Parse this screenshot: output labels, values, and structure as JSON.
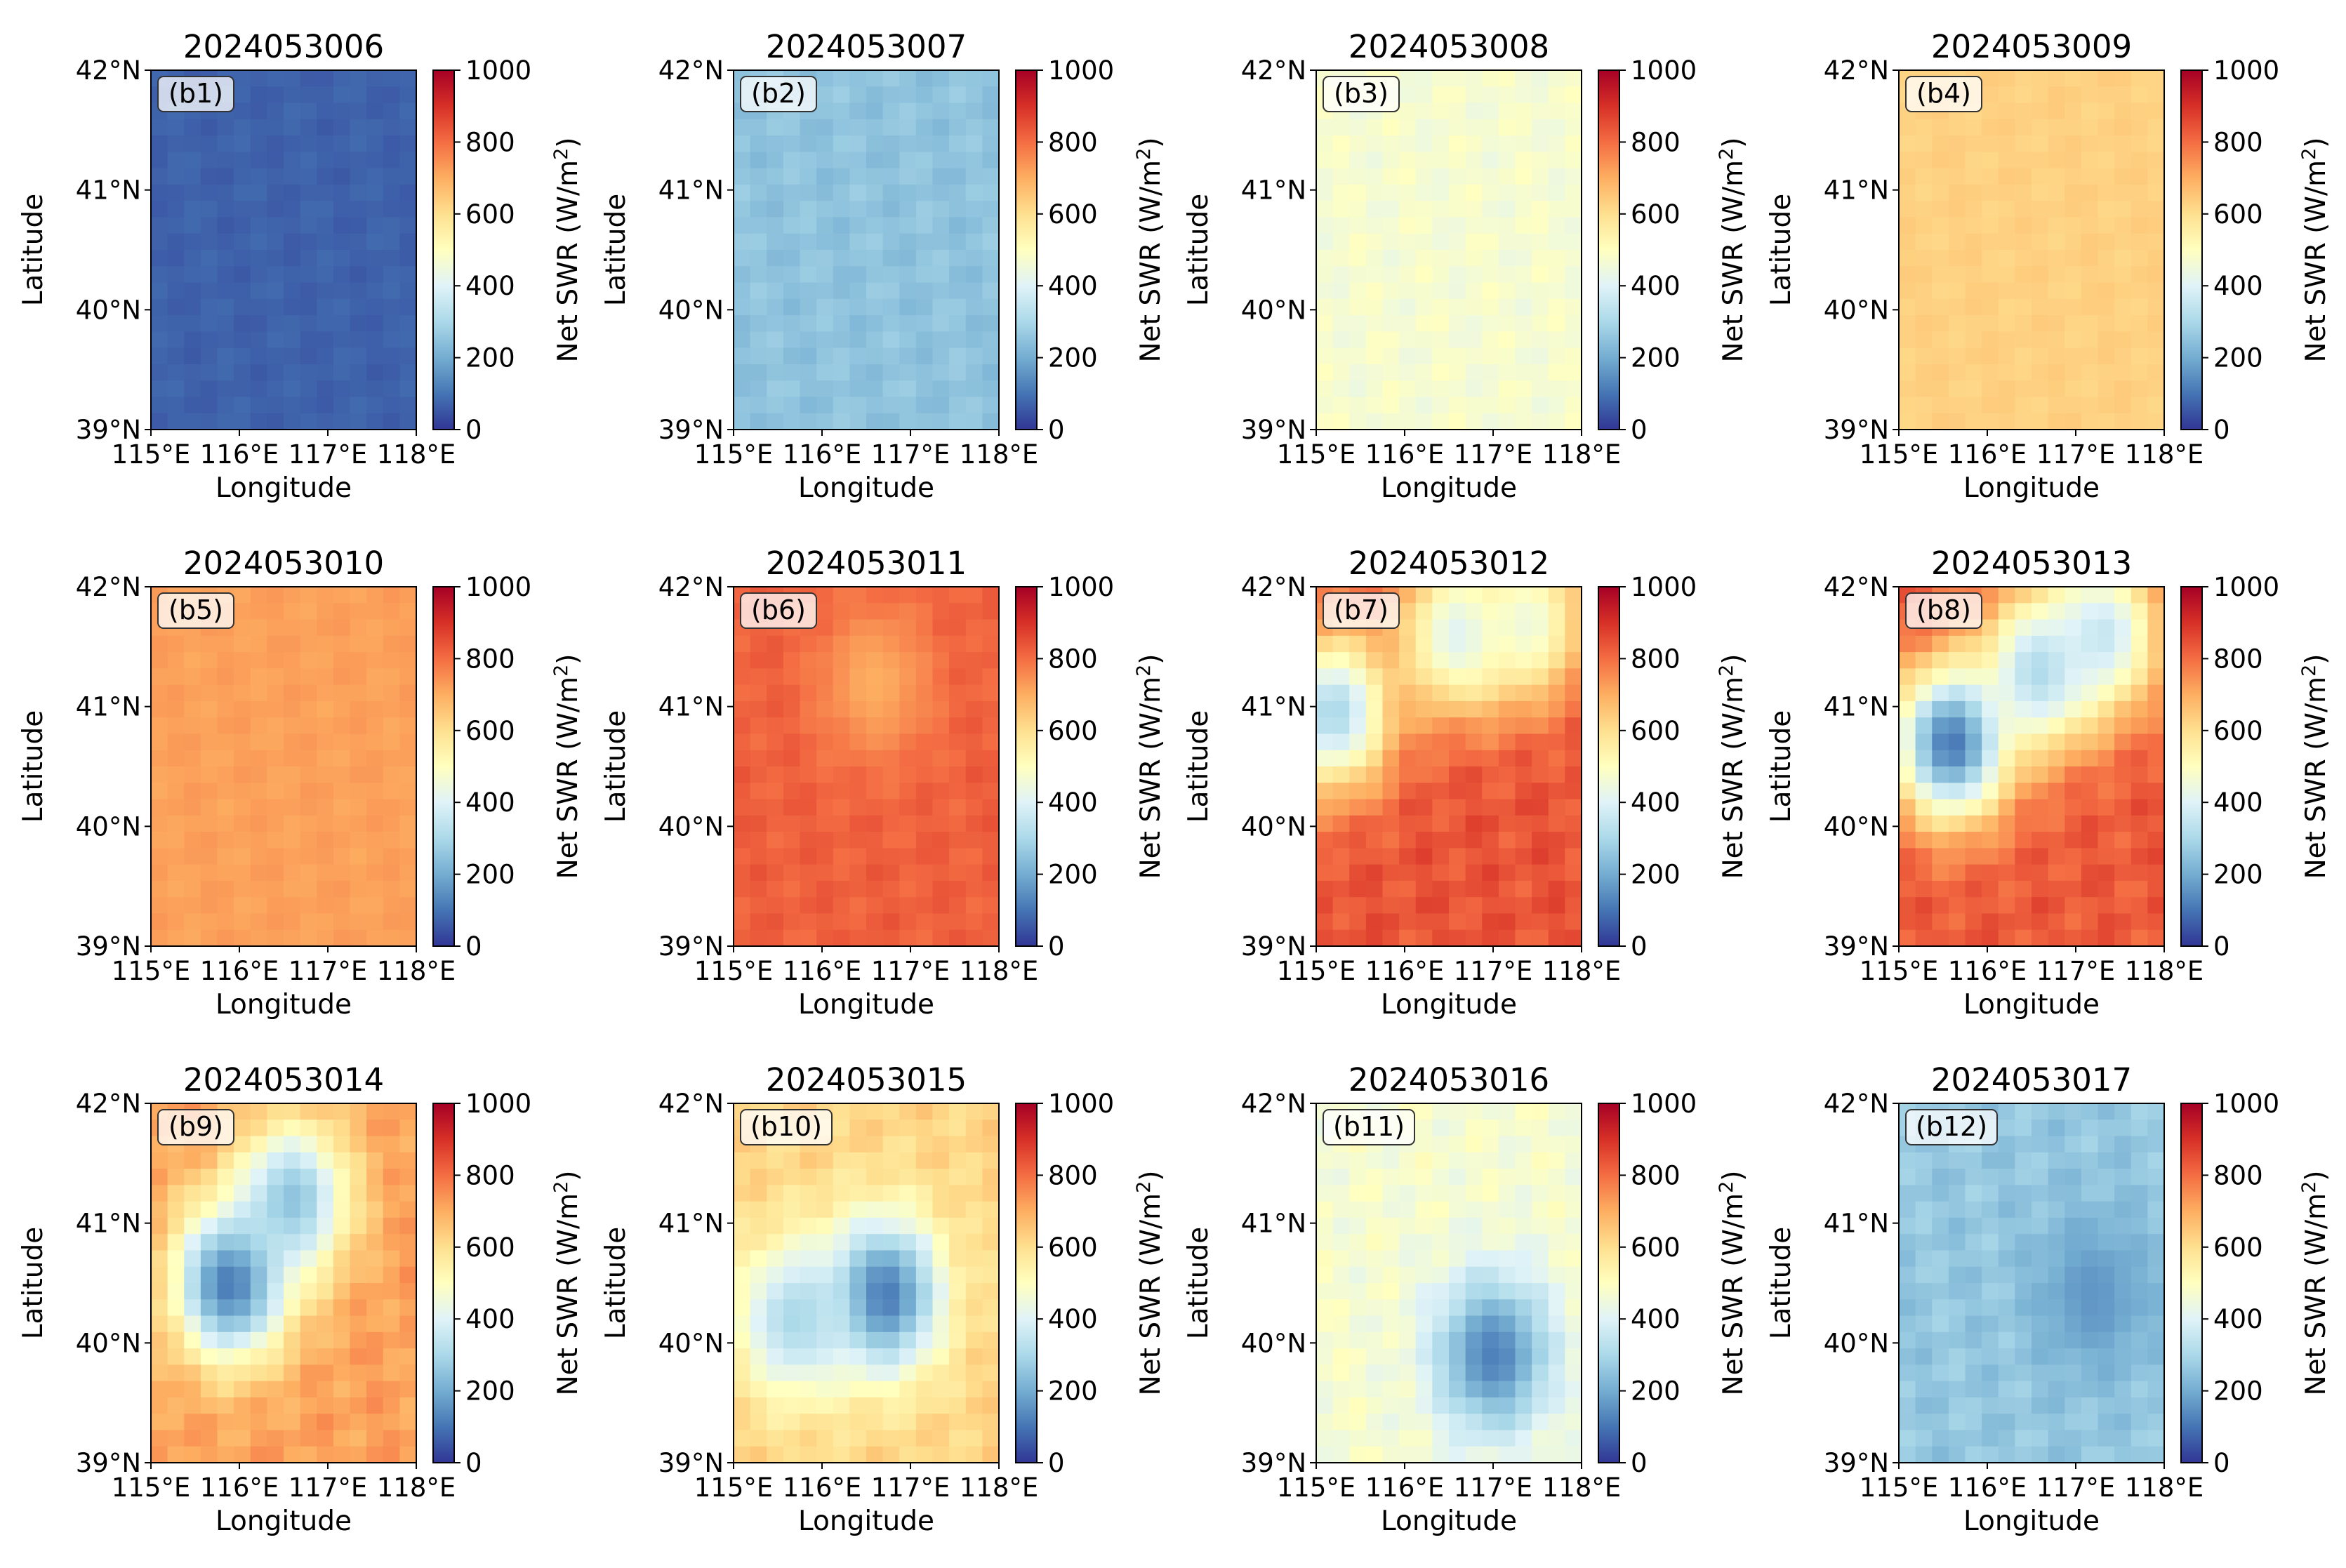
{
  "figure": {
    "xlabel": "Longitude",
    "ylabel": "Latitude",
    "colorbar": {
      "label_main": "Net SWR (W/m",
      "label_sup": "2",
      "label_end": ")",
      "range": [
        0,
        1000
      ],
      "ticks": [
        "0",
        "200",
        "400",
        "600",
        "800",
        "1000"
      ],
      "colormap": [
        "#313695",
        "#4575b4",
        "#74add1",
        "#abd9e9",
        "#e0f3f8",
        "#ffffbf",
        "#fee090",
        "#fdae61",
        "#f46d43",
        "#d73027",
        "#a50026"
      ]
    },
    "x_ticks": [
      "115°E",
      "116°E",
      "117°E",
      "118°E"
    ],
    "y_ticks": [
      "42°N",
      "41°N",
      "40°N",
      "39°N"
    ]
  },
  "chart_data": [
    {
      "type": "heatmap",
      "title": "2024053006",
      "panel_label": "(b1)",
      "xlim": [
        115,
        118
      ],
      "ylim": [
        39,
        42
      ],
      "xlabel": "Longitude",
      "ylabel": "Latitude",
      "base_value": 70,
      "variation": 15,
      "features": []
    },
    {
      "type": "heatmap",
      "title": "2024053007",
      "panel_label": "(b2)",
      "xlim": [
        115,
        118
      ],
      "ylim": [
        39,
        42
      ],
      "xlabel": "Longitude",
      "ylabel": "Latitude",
      "base_value": 250,
      "variation": 25,
      "features": []
    },
    {
      "type": "heatmap",
      "title": "2024053008",
      "panel_label": "(b3)",
      "xlim": [
        115,
        118
      ],
      "ylim": [
        39,
        42
      ],
      "xlabel": "Longitude",
      "ylabel": "Latitude",
      "base_value": 470,
      "variation": 30,
      "features": []
    },
    {
      "type": "heatmap",
      "title": "2024053009",
      "panel_label": "(b4)",
      "xlim": [
        115,
        118
      ],
      "ylim": [
        39,
        42
      ],
      "xlabel": "Longitude",
      "ylabel": "Latitude",
      "base_value": 630,
      "variation": 15,
      "features": []
    },
    {
      "type": "heatmap",
      "title": "2024053010",
      "panel_label": "(b5)",
      "xlim": [
        115,
        118
      ],
      "ylim": [
        39,
        42
      ],
      "xlabel": "Longitude",
      "ylabel": "Latitude",
      "base_value": 720,
      "variation": 15,
      "features": []
    },
    {
      "type": "heatmap",
      "title": "2024053011",
      "panel_label": "(b6)",
      "xlim": [
        115,
        118
      ],
      "ylim": [
        39,
        42
      ],
      "xlabel": "Longitude",
      "ylabel": "Latitude",
      "base_value": 820,
      "variation": 25,
      "features": [
        {
          "lon": 116.6,
          "lat": 41.2,
          "value": 700
        }
      ]
    },
    {
      "type": "heatmap",
      "title": "2024053012",
      "panel_label": "(b7)",
      "xlim": [
        115,
        118
      ],
      "ylim": [
        39,
        42
      ],
      "xlabel": "Longitude",
      "ylabel": "Latitude",
      "base_value": 840,
      "variation": 40,
      "features": [
        {
          "lon": 115.2,
          "lat": 40.95,
          "value": 300
        },
        {
          "lon": 116.6,
          "lat": 41.6,
          "value": 400
        },
        {
          "lon": 117.4,
          "lat": 41.7,
          "value": 450
        }
      ]
    },
    {
      "type": "heatmap",
      "title": "2024053013",
      "panel_label": "(b8)",
      "xlim": [
        115,
        118
      ],
      "ylim": [
        39,
        42
      ],
      "xlabel": "Longitude",
      "ylabel": "Latitude",
      "base_value": 830,
      "variation": 40,
      "features": [
        {
          "lon": 115.6,
          "lat": 40.7,
          "value": 100
        },
        {
          "lon": 116.6,
          "lat": 41.3,
          "value": 300
        },
        {
          "lon": 117.3,
          "lat": 41.6,
          "value": 350
        }
      ]
    },
    {
      "type": "heatmap",
      "title": "2024053014",
      "panel_label": "(b9)",
      "xlim": [
        115,
        118
      ],
      "ylim": [
        39,
        42
      ],
      "xlabel": "Longitude",
      "ylabel": "Latitude",
      "base_value": 720,
      "variation": 40,
      "features": [
        {
          "lon": 115.9,
          "lat": 40.5,
          "value": 100
        },
        {
          "lon": 116.6,
          "lat": 41.2,
          "value": 250
        }
      ]
    },
    {
      "type": "heatmap",
      "title": "2024053015",
      "panel_label": "(b10)",
      "xlim": [
        115,
        118
      ],
      "ylim": [
        39,
        42
      ],
      "xlabel": "Longitude",
      "ylabel": "Latitude",
      "base_value": 620,
      "variation": 40,
      "features": [
        {
          "lon": 116.7,
          "lat": 40.4,
          "value": 100
        },
        {
          "lon": 115.7,
          "lat": 40.2,
          "value": 300
        }
      ]
    },
    {
      "type": "heatmap",
      "title": "2024053016",
      "panel_label": "(b11)",
      "xlim": [
        115,
        118
      ],
      "ylim": [
        39,
        42
      ],
      "xlabel": "Longitude",
      "ylabel": "Latitude",
      "base_value": 470,
      "variation": 40,
      "features": [
        {
          "lon": 117.0,
          "lat": 39.9,
          "value": 120
        }
      ]
    },
    {
      "type": "heatmap",
      "title": "2024053017",
      "panel_label": "(b12)",
      "xlim": [
        115,
        118
      ],
      "ylim": [
        39,
        42
      ],
      "xlabel": "Longitude",
      "ylabel": "Latitude",
      "base_value": 260,
      "variation": 35,
      "features": [
        {
          "lon": 117.2,
          "lat": 40.4,
          "value": 160
        }
      ]
    }
  ]
}
